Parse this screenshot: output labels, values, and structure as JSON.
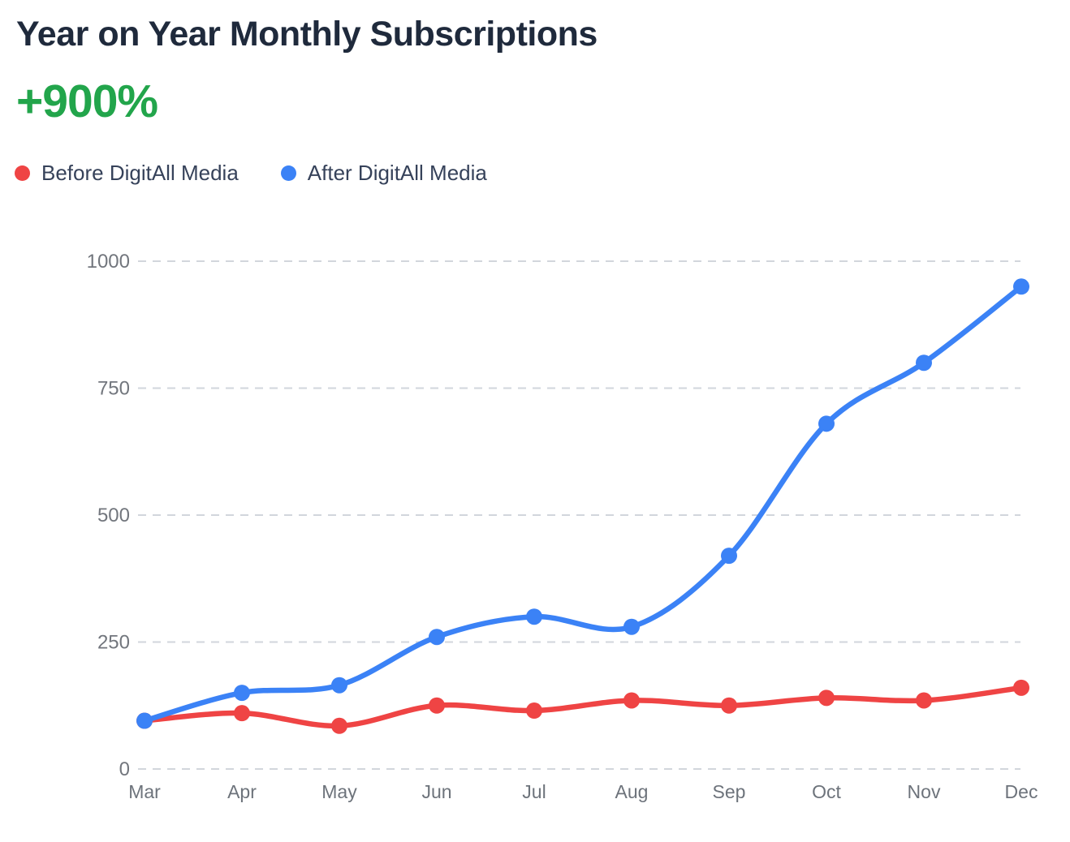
{
  "header": {
    "title": "Year on Year Monthly Subscriptions",
    "metric": "+900%"
  },
  "colors": {
    "title_text": "#1f2a3c",
    "metric_green": "#22a54b",
    "before_red": "#ef4444",
    "after_blue": "#3b82f6",
    "axis_label_gray": "#6d737b",
    "gridline_gray": "#d2d6dc"
  },
  "legend": {
    "items": [
      {
        "label": "Before DigitAll Media",
        "color": "#ef4444"
      },
      {
        "label": "After DigitAll Media",
        "color": "#3b82f6"
      }
    ]
  },
  "chart_data": {
    "type": "line",
    "title": "Year on Year Monthly Subscriptions",
    "categories": [
      "Mar",
      "Apr",
      "May",
      "Jun",
      "Jul",
      "Aug",
      "Sep",
      "Oct",
      "Nov",
      "Dec"
    ],
    "series": [
      {
        "name": "Before DigitAll Media",
        "color": "#ef4444",
        "values": [
          95,
          110,
          85,
          125,
          115,
          135,
          125,
          140,
          135,
          160
        ]
      },
      {
        "name": "After DigitAll Media",
        "color": "#3b82f6",
        "values": [
          95,
          150,
          165,
          260,
          300,
          280,
          420,
          680,
          800,
          950
        ]
      }
    ],
    "xlabel": "",
    "ylabel": "",
    "ylim": [
      0,
      1000
    ],
    "yticks": [
      0,
      250,
      500,
      750,
      1000
    ],
    "grid": "horizontal-dashed",
    "legend_position": "top-left",
    "curve": "smooth"
  }
}
